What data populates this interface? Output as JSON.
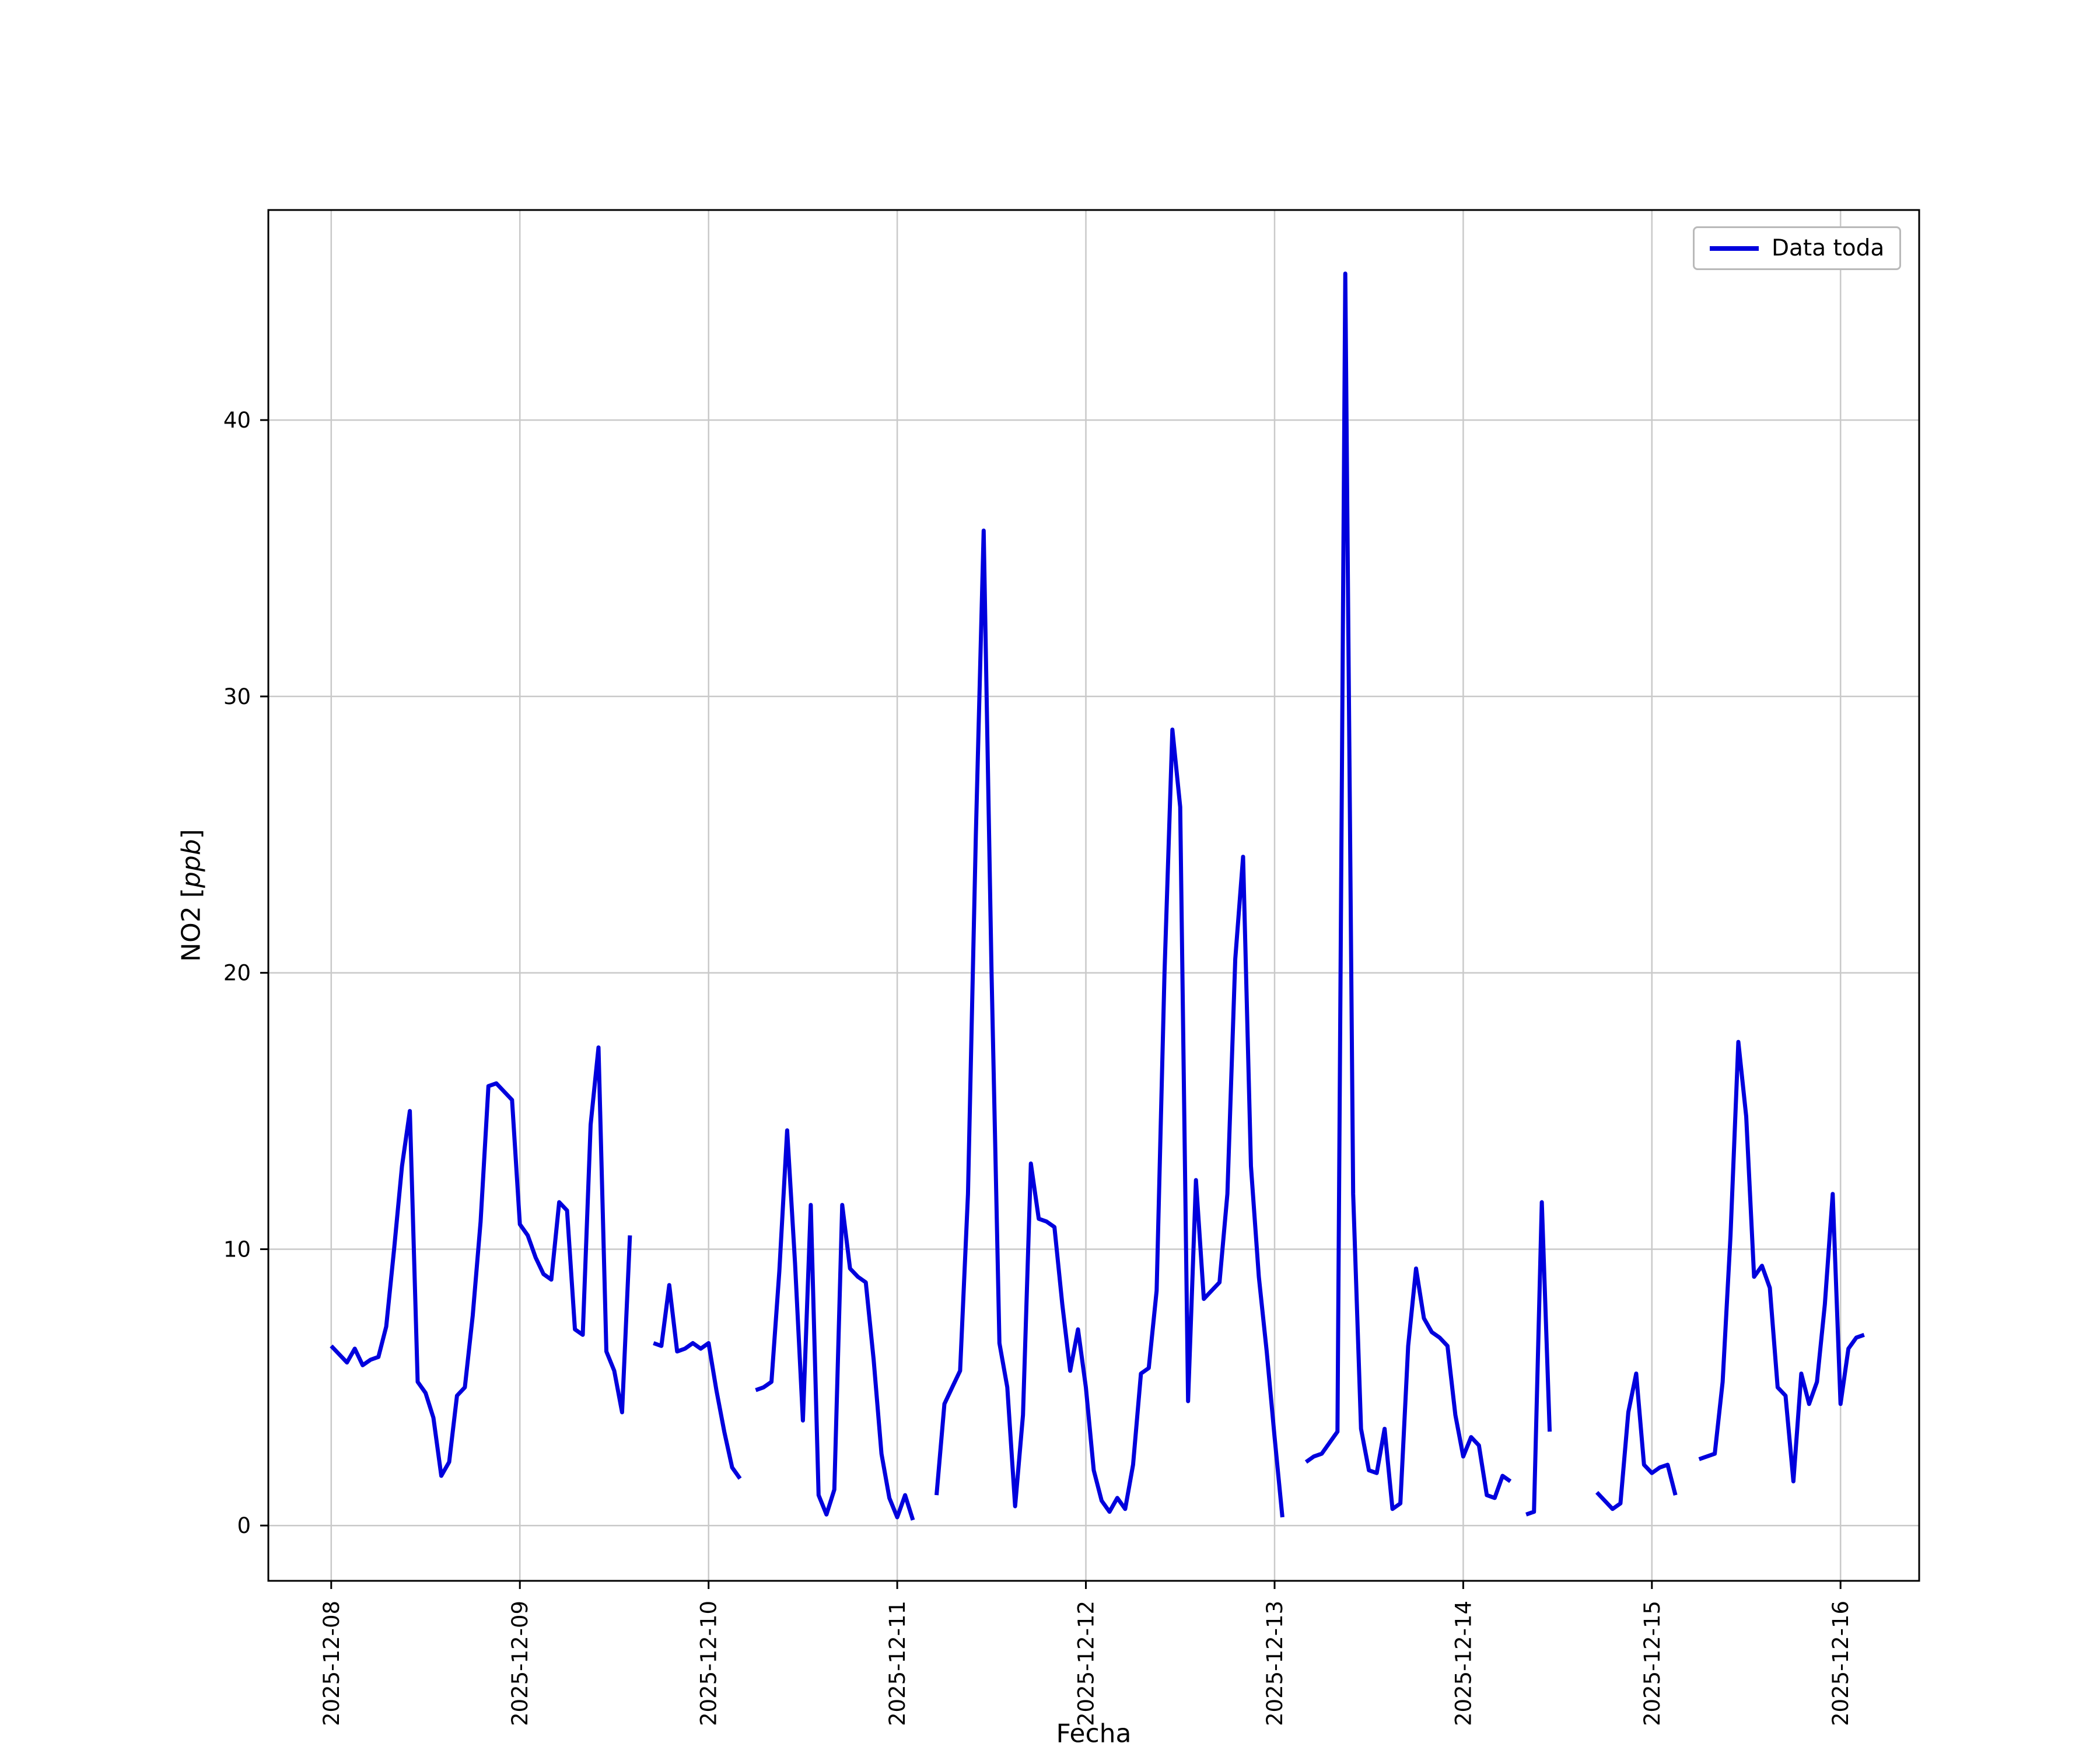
{
  "chart_data": {
    "type": "line",
    "title": "",
    "xlabel": "Fecha",
    "ylabel": "NO2 [ppb]",
    "ylabel_prefix": "NO2 [",
    "ylabel_math": "ppb",
    "ylabel_suffix": "]",
    "grid": true,
    "grid_color": "#c9c9c9",
    "line_color": "#0000dd",
    "legend": {
      "position": "upper right",
      "entries": [
        {
          "label": "Data toda",
          "color": "#0000dd"
        }
      ]
    },
    "x_tick_labels": [
      "2025-12-08",
      "2025-12-09",
      "2025-12-10",
      "2025-12-11",
      "2025-12-12",
      "2025-12-13",
      "2025-12-14",
      "2025-12-15",
      "2025-12-16"
    ],
    "x_tick_positions_hours": [
      0,
      24,
      48,
      72,
      96,
      120,
      144,
      168,
      192
    ],
    "y_ticks": [
      0,
      10,
      20,
      30,
      40
    ],
    "xlim_hours": [
      -8,
      202
    ],
    "ylim": [
      -2,
      47.6
    ],
    "x_unit": "hours since 2025-12-08 00:00",
    "series": [
      {
        "name": "Data toda",
        "color": "#0000dd",
        "points": [
          [
            0,
            6.5
          ],
          [
            1,
            6.2
          ],
          [
            2,
            5.9
          ],
          [
            3,
            6.4
          ],
          [
            4,
            5.8
          ],
          [
            5,
            6.0
          ],
          [
            6,
            6.1
          ],
          [
            7,
            7.2
          ],
          [
            8,
            10.0
          ],
          [
            9,
            13.0
          ],
          [
            10,
            15.0
          ],
          [
            11,
            5.2
          ],
          [
            12,
            4.8
          ],
          [
            13,
            3.9
          ],
          [
            14,
            1.8
          ],
          [
            15,
            2.3
          ],
          [
            16,
            4.7
          ],
          [
            17,
            5.0
          ],
          [
            18,
            7.6
          ],
          [
            19,
            11.0
          ],
          [
            20,
            15.9
          ],
          [
            21,
            16.0
          ],
          [
            22,
            15.7
          ],
          [
            23,
            15.4
          ],
          [
            24,
            10.9
          ],
          [
            25,
            10.5
          ],
          [
            26,
            9.7
          ],
          [
            27,
            9.1
          ],
          [
            28,
            8.9
          ],
          [
            29,
            11.7
          ],
          [
            30,
            11.4
          ],
          [
            31,
            7.1
          ],
          [
            32,
            6.9
          ],
          [
            33,
            14.5
          ],
          [
            34,
            17.3
          ],
          [
            35,
            6.3
          ],
          [
            36,
            5.6
          ],
          [
            37,
            4.1
          ],
          [
            38,
            10.5
          ],
          [
            39,
            null
          ],
          [
            41,
            6.6
          ],
          [
            42,
            6.5
          ],
          [
            43,
            8.7
          ],
          [
            44,
            6.3
          ],
          [
            45,
            6.4
          ],
          [
            46,
            6.6
          ],
          [
            47,
            6.4
          ],
          [
            48,
            6.6
          ],
          [
            49,
            4.9
          ],
          [
            50,
            3.4
          ],
          [
            51,
            2.1
          ],
          [
            52,
            1.7
          ],
          [
            53,
            null
          ],
          [
            54,
            4.9
          ],
          [
            55,
            5.0
          ],
          [
            56,
            5.2
          ],
          [
            57,
            9.2
          ],
          [
            58,
            14.3
          ],
          [
            59,
            9.5
          ],
          [
            60,
            3.8
          ],
          [
            61,
            11.6
          ],
          [
            62,
            1.1
          ],
          [
            63,
            0.4
          ],
          [
            64,
            1.3
          ],
          [
            65,
            11.6
          ],
          [
            66,
            9.3
          ],
          [
            67,
            9.0
          ],
          [
            68,
            8.8
          ],
          [
            69,
            6.0
          ],
          [
            70,
            2.6
          ],
          [
            71,
            1.0
          ],
          [
            72,
            0.3
          ],
          [
            73,
            1.1
          ],
          [
            74,
            0.2
          ],
          [
            75,
            null
          ],
          [
            77,
            1.1
          ],
          [
            78,
            4.4
          ],
          [
            79,
            5.0
          ],
          [
            80,
            5.6
          ],
          [
            81,
            12.0
          ],
          [
            82,
            25.0
          ],
          [
            83,
            36.0
          ],
          [
            84,
            20.0
          ],
          [
            85,
            6.6
          ],
          [
            86,
            5.0
          ],
          [
            87,
            0.7
          ],
          [
            88,
            4.0
          ],
          [
            89,
            13.1
          ],
          [
            90,
            11.1
          ],
          [
            91,
            11.0
          ],
          [
            92,
            10.8
          ],
          [
            93,
            8.0
          ],
          [
            94,
            5.6
          ],
          [
            95,
            7.1
          ],
          [
            96,
            5.0
          ],
          [
            97,
            2.0
          ],
          [
            98,
            0.9
          ],
          [
            99,
            0.5
          ],
          [
            100,
            1.0
          ],
          [
            101,
            0.6
          ],
          [
            102,
            2.2
          ],
          [
            103,
            5.5
          ],
          [
            104,
            5.7
          ],
          [
            105,
            8.5
          ],
          [
            106,
            20.0
          ],
          [
            107,
            28.8
          ],
          [
            108,
            26.0
          ],
          [
            109,
            4.5
          ],
          [
            110,
            12.5
          ],
          [
            111,
            8.2
          ],
          [
            112,
            8.5
          ],
          [
            113,
            8.8
          ],
          [
            114,
            12.0
          ],
          [
            115,
            20.5
          ],
          [
            116,
            24.2
          ],
          [
            117,
            13.0
          ],
          [
            118,
            9.0
          ],
          [
            119,
            6.3
          ],
          [
            120,
            3.2
          ],
          [
            121,
            0.3
          ],
          [
            122,
            null
          ],
          [
            124,
            2.3
          ],
          [
            125,
            2.5
          ],
          [
            126,
            2.6
          ],
          [
            127,
            3.0
          ],
          [
            128,
            3.4
          ],
          [
            129,
            45.3
          ],
          [
            130,
            12.0
          ],
          [
            131,
            3.5
          ],
          [
            132,
            2.0
          ],
          [
            133,
            1.9
          ],
          [
            134,
            3.5
          ],
          [
            135,
            0.6
          ],
          [
            136,
            0.8
          ],
          [
            137,
            6.5
          ],
          [
            138,
            9.3
          ],
          [
            139,
            7.5
          ],
          [
            140,
            7.0
          ],
          [
            141,
            6.8
          ],
          [
            142,
            6.5
          ],
          [
            143,
            4.0
          ],
          [
            144,
            2.5
          ],
          [
            145,
            3.2
          ],
          [
            146,
            2.9
          ],
          [
            147,
            1.1
          ],
          [
            148,
            1.0
          ],
          [
            149,
            1.8
          ],
          [
            150,
            1.6
          ],
          [
            151,
            null
          ],
          [
            152,
            0.4
          ],
          [
            153,
            0.5
          ],
          [
            154,
            11.7
          ],
          [
            155,
            3.4
          ],
          [
            156,
            null
          ],
          [
            161,
            1.2
          ],
          [
            162,
            0.9
          ],
          [
            163,
            0.6
          ],
          [
            164,
            0.8
          ],
          [
            165,
            4.1
          ],
          [
            166,
            5.5
          ],
          [
            167,
            2.2
          ],
          [
            168,
            1.9
          ],
          [
            169,
            2.1
          ],
          [
            170,
            2.2
          ],
          [
            171,
            1.1
          ],
          [
            172,
            null
          ],
          [
            174,
            2.4
          ],
          [
            175,
            2.5
          ],
          [
            176,
            2.6
          ],
          [
            177,
            5.2
          ],
          [
            178,
            10.5
          ],
          [
            179,
            17.5
          ],
          [
            180,
            14.8
          ],
          [
            181,
            9.0
          ],
          [
            182,
            9.4
          ],
          [
            183,
            8.6
          ],
          [
            184,
            5.0
          ],
          [
            185,
            4.7
          ],
          [
            186,
            1.6
          ],
          [
            187,
            5.5
          ],
          [
            188,
            4.4
          ],
          [
            189,
            5.2
          ],
          [
            190,
            8.0
          ],
          [
            191,
            12.0
          ],
          [
            192,
            4.4
          ],
          [
            193,
            6.4
          ],
          [
            194,
            6.8
          ],
          [
            195,
            6.9
          ]
        ]
      }
    ]
  }
}
